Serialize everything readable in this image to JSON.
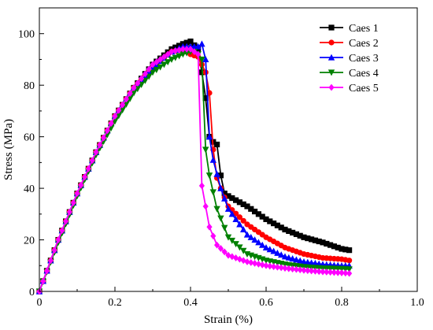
{
  "chart_data": {
    "type": "line",
    "title": "",
    "xlabel": "Strain (%)",
    "ylabel": "Stress (MPa)",
    "xlim": [
      0,
      1.0
    ],
    "ylim": [
      0,
      110
    ],
    "xticks": [
      0,
      0.2,
      0.4,
      0.6,
      0.8,
      1.0
    ],
    "xtick_labels": [
      "0",
      "0.2",
      "0.4",
      "0.6",
      "0.8",
      "1.0"
    ],
    "yticks": [
      0,
      20,
      40,
      60,
      80,
      100
    ],
    "ytick_labels": [
      "0",
      "20",
      "40",
      "60",
      "80",
      "100"
    ],
    "grid": false,
    "legend_position": "top-right",
    "series": [
      {
        "name": "Caes 1",
        "color": "#000000",
        "marker": "square",
        "x": [
          0,
          0.05,
          0.1,
          0.15,
          0.2,
          0.25,
          0.3,
          0.35,
          0.38,
          0.4,
          0.42,
          0.43,
          0.44,
          0.45,
          0.46,
          0.47,
          0.48,
          0.49,
          0.5,
          0.55,
          0.6,
          0.65,
          0.7,
          0.75,
          0.8,
          0.82
        ],
        "y": [
          0,
          20,
          38,
          54,
          68,
          79,
          88,
          94,
          96,
          97,
          94,
          85,
          75,
          60,
          58,
          57,
          45,
          38,
          37,
          33,
          28,
          24,
          21,
          19,
          16.5,
          16
        ]
      },
      {
        "name": "Caes 2",
        "color": "#ff0000",
        "marker": "circle",
        "x": [
          0,
          0.05,
          0.1,
          0.15,
          0.2,
          0.25,
          0.3,
          0.35,
          0.38,
          0.4,
          0.42,
          0.43,
          0.44,
          0.45,
          0.46,
          0.47,
          0.48,
          0.5,
          0.55,
          0.6,
          0.65,
          0.7,
          0.75,
          0.8,
          0.82
        ],
        "y": [
          0,
          20,
          38,
          54,
          68,
          79,
          87,
          93,
          94,
          92,
          91,
          88,
          85,
          77,
          55,
          44,
          40,
          33,
          26,
          21,
          17,
          14.5,
          13,
          12.5,
          12
        ]
      },
      {
        "name": "Caes 3",
        "color": "#0000ff",
        "marker": "triangle-up",
        "x": [
          0,
          0.05,
          0.1,
          0.15,
          0.2,
          0.25,
          0.3,
          0.35,
          0.38,
          0.4,
          0.42,
          0.43,
          0.44,
          0.45,
          0.46,
          0.48,
          0.5,
          0.55,
          0.6,
          0.65,
          0.7,
          0.75,
          0.8,
          0.82
        ],
        "y": [
          0,
          20,
          38,
          54,
          68,
          79,
          87,
          93,
          95,
          95,
          95,
          96,
          90,
          60,
          51,
          40,
          32,
          22,
          17,
          13.5,
          11.5,
          10.5,
          10,
          10
        ]
      },
      {
        "name": "Caes 4",
        "color": "#008000",
        "marker": "triangle-down",
        "x": [
          0,
          0.05,
          0.1,
          0.15,
          0.2,
          0.25,
          0.3,
          0.35,
          0.38,
          0.4,
          0.41,
          0.42,
          0.43,
          0.44,
          0.45,
          0.47,
          0.5,
          0.55,
          0.6,
          0.65,
          0.7,
          0.75,
          0.8,
          0.82
        ],
        "y": [
          0,
          19,
          37,
          53,
          66,
          77,
          85,
          90,
          92,
          93,
          93,
          92,
          90,
          55,
          45,
          32,
          21,
          14.5,
          12,
          10.5,
          9.5,
          9,
          8.8,
          8.6
        ]
      },
      {
        "name": "Caes 5",
        "color": "#ff00ff",
        "marker": "diamond",
        "x": [
          0,
          0.05,
          0.1,
          0.15,
          0.2,
          0.25,
          0.3,
          0.35,
          0.38,
          0.4,
          0.41,
          0.42,
          0.43,
          0.44,
          0.45,
          0.47,
          0.5,
          0.55,
          0.6,
          0.65,
          0.7,
          0.75,
          0.8,
          0.82
        ],
        "y": [
          0,
          20,
          38,
          54,
          68,
          79,
          88,
          93,
          94,
          94,
          93,
          92,
          41,
          33,
          25,
          18,
          14,
          11.5,
          10,
          9,
          8.2,
          7.6,
          7.2,
          7
        ]
      }
    ]
  }
}
